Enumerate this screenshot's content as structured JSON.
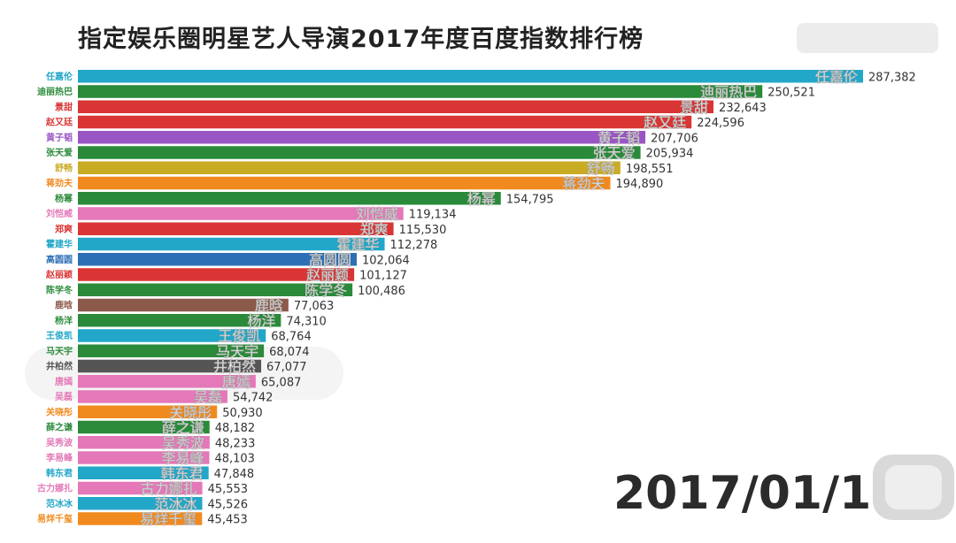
{
  "chart_data": {
    "type": "bar",
    "orientation": "horizontal",
    "title": "指定娱乐圈明星艺人导演2017年度百度指数排行榜",
    "date": "2017/01/11",
    "xlim": [
      0,
      300000
    ],
    "grid": false,
    "legend": "none",
    "categories": [
      "任嘉伦",
      "迪丽热巴",
      "景甜",
      "赵又廷",
      "黄子韬",
      "张天爱",
      "舒畅",
      "蒋劲夫",
      "杨幂",
      "刘恺威",
      "郑爽",
      "霍建华",
      "高圆圆",
      "赵丽颖",
      "陈学冬",
      "鹿晗",
      "杨洋",
      "王俊凯",
      "马天宇",
      "井柏然",
      "唐嫣",
      "吴磊",
      "关晓彤",
      "薛之谦",
      "吴秀波",
      "李易峰",
      "韩东君",
      "古力娜扎",
      "范冰冰",
      "易烊千玺"
    ],
    "values": [
      287382,
      250521,
      232643,
      224596,
      207706,
      205934,
      198551,
      194890,
      154795,
      119134,
      115530,
      112278,
      102064,
      101127,
      100486,
      77063,
      74310,
      68764,
      68074,
      67077,
      65087,
      54742,
      50930,
      48182,
      48233,
      48103,
      47848,
      45553,
      45526,
      45453
    ],
    "value_labels": [
      "287,382",
      "250,521",
      "232,643",
      "224,596",
      "207,706",
      "205,934",
      "198,551",
      "194,890",
      "154,795",
      "119,134",
      "115,530",
      "112,278",
      "102,064",
      "101,127",
      "100,486",
      "77,063",
      "74,310",
      "68,764",
      "68,074",
      "67,077",
      "65,087",
      "54,742",
      "50,930",
      "48,182",
      "48,233",
      "48,103",
      "47,848",
      "45,553",
      "45,526",
      "45,453"
    ],
    "colors": [
      "#22a7c8",
      "#2a8a3a",
      "#d93535",
      "#d93535",
      "#9a55c4",
      "#2a8a3a",
      "#c9ab24",
      "#f08a1f",
      "#2a8a3a",
      "#e478b8",
      "#d93535",
      "#22a7c8",
      "#2d6fb5",
      "#d93535",
      "#2a8a3a",
      "#8c5a4a",
      "#2a8a3a",
      "#22a7c8",
      "#2a8a3a",
      "#555555",
      "#e478b8",
      "#e478b8",
      "#f08a1f",
      "#2a8a3a",
      "#e478b8",
      "#e478b8",
      "#22a7c8",
      "#e478b8",
      "#22a7c8",
      "#f08a1f"
    ]
  }
}
